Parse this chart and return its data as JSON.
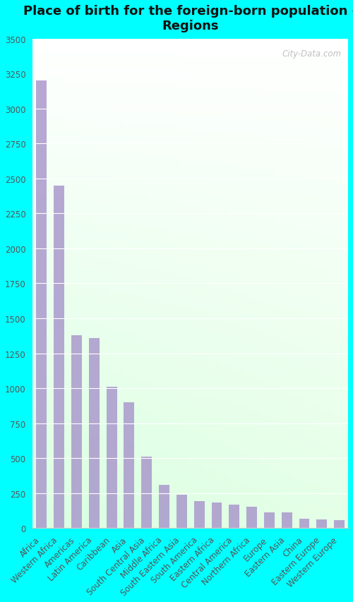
{
  "title": "Place of birth for the foreign-born population -\nRegions",
  "categories": [
    "Africa",
    "Western Africa",
    "Americas",
    "Latin America",
    "Caribbean",
    "Asia",
    "South Central Asia",
    "Middle Africa",
    "South Eastern Asia",
    "South America",
    "Eastern Africa",
    "Central America",
    "Northern Africa",
    "Europe",
    "Eastern Asia",
    "China",
    "Eastern Europe",
    "Western Europe"
  ],
  "values": [
    3200,
    2450,
    1380,
    1360,
    1010,
    900,
    510,
    310,
    240,
    195,
    185,
    170,
    155,
    115,
    110,
    65,
    60,
    55
  ],
  "bar_color": "#aa99cc",
  "bg_color": "#00ffff",
  "ylim": [
    0,
    3500
  ],
  "yticks": [
    0,
    250,
    500,
    750,
    1000,
    1250,
    1500,
    1750,
    2000,
    2250,
    2500,
    2750,
    3000,
    3250,
    3500
  ],
  "title_fontsize": 13,
  "tick_fontsize": 8.5,
  "watermark": "City-Data.com"
}
